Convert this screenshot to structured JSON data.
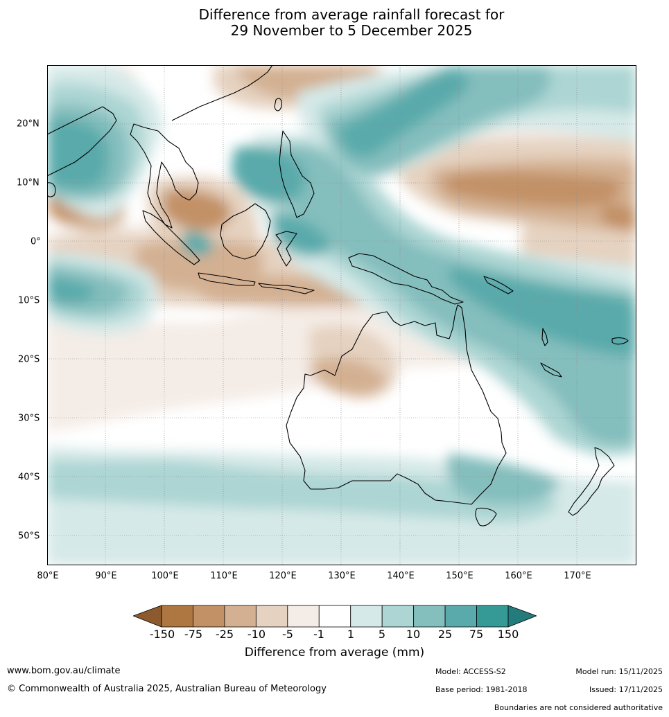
{
  "title": {
    "line1": "Difference from average rainfall forecast for",
    "line2": "29 November to 5 December 2025"
  },
  "map": {
    "lat_labels": [
      "20°N",
      "10°N",
      "0°",
      "10°S",
      "20°S",
      "30°S",
      "40°S",
      "50°S"
    ],
    "lon_labels": [
      "80°E",
      "90°E",
      "100°E",
      "110°E",
      "120°E",
      "130°E",
      "140°E",
      "150°E",
      "160°E",
      "170°E"
    ]
  },
  "legend": {
    "title": "Difference from average (mm)",
    "tick_labels": [
      "-150",
      "-75",
      "-25",
      "-10",
      "-5",
      "-1",
      "1",
      "5",
      "10",
      "25",
      "75",
      "150"
    ],
    "colors": {
      "below_150": "#8c5a2e",
      "m150_m75": "#ae7640",
      "m75_m25": "#c29166",
      "m25_m10": "#d3b092",
      "m10_m5": "#e5d2c0",
      "m5_m1": "#f4ece6",
      "m1_p1": "#ffffff",
      "p1_p5": "#d5e9e8",
      "p5_p10": "#acd5d3",
      "p10_p25": "#84bebd",
      "p25_p75": "#5aaaab",
      "p75_p150": "#359995",
      "above_150": "#237c7b"
    }
  },
  "footer": {
    "url": "www.bom.gov.au/climate",
    "copyright": "© Commonwealth of Australia 2025, Australian Bureau of Meteorology",
    "model": "Model: ACCESS-S2",
    "base_period": "Base period: 1981-2018",
    "model_run": "Model run: 15/11/2025",
    "issued": "Issued: 17/11/2025",
    "disclaimer": "Boundaries are not considered authoritative"
  }
}
